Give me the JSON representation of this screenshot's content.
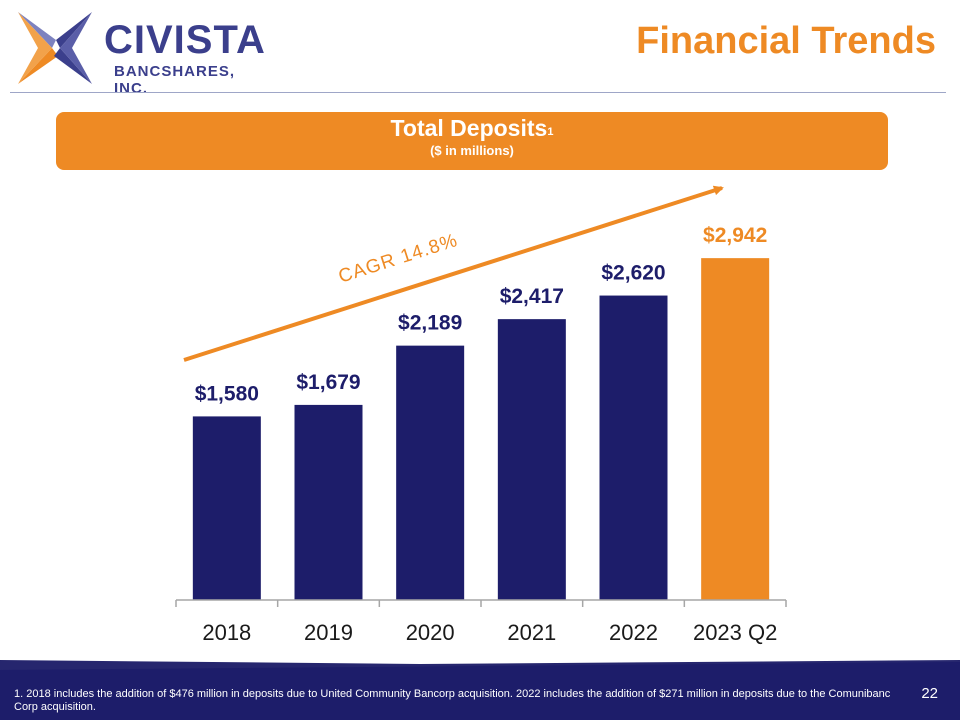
{
  "brand": {
    "name": "CIVISTA",
    "subtitle": "BANCSHARES, INC.",
    "colors": {
      "navy": "#1d1d6a",
      "orange": "#ee8a24",
      "logo_purple": "#3b3f8c",
      "logo_light": "#7d82bf"
    }
  },
  "page": {
    "title": "Financial Trends",
    "page_number": "22"
  },
  "banner": {
    "title": "Total Deposits",
    "superscript": "1",
    "subtitle": "($ in millions)"
  },
  "chart_data": {
    "type": "bar",
    "title": "Total Deposits",
    "categories": [
      "2018",
      "2019",
      "2020",
      "2021",
      "2022",
      "2023 Q2"
    ],
    "values": [
      1580,
      1679,
      2189,
      2417,
      2620,
      2942
    ],
    "data_labels": [
      "$1,580",
      "$1,679",
      "$2,189",
      "$2,417",
      "$2,620",
      "$2,942"
    ],
    "bar_colors": [
      "#1d1d6a",
      "#1d1d6a",
      "#1d1d6a",
      "#1d1d6a",
      "#1d1d6a",
      "#ee8a24"
    ],
    "label_colors": [
      "#1d1d6a",
      "#1d1d6a",
      "#1d1d6a",
      "#1d1d6a",
      "#1d1d6a",
      "#ee8a24"
    ],
    "annotation": "CAGR 14.8%",
    "ylim": [
      0,
      3000
    ],
    "grid": false,
    "xlabel": "",
    "ylabel": ""
  },
  "footnote": "1. 2018 includes the addition of $476 million in deposits due to United Community Bancorp acquisition. 2022 includes the addition of $271 million in deposits due to the Comunibanc Corp acquisition."
}
